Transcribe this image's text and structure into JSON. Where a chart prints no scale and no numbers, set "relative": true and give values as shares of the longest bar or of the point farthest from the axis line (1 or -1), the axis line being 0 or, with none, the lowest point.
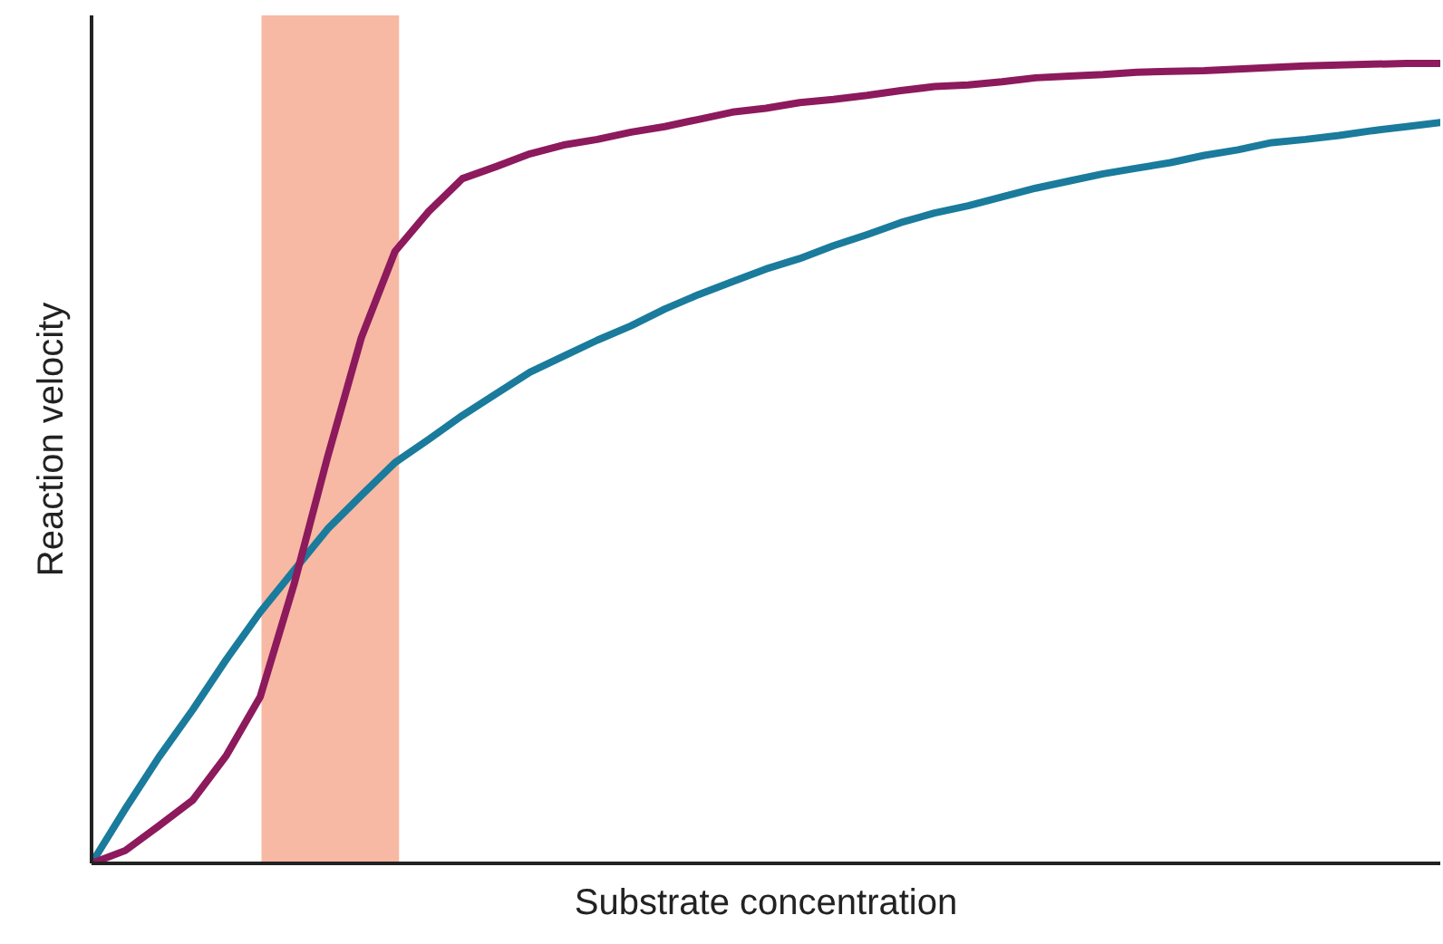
{
  "chart_data": {
    "type": "line",
    "relative": true,
    "xlabel": "Substrate concentration",
    "ylabel": "Reaction velocity",
    "categories": [
      null,
      null,
      null,
      null,
      null,
      null,
      null,
      null,
      null,
      null,
      null,
      null,
      null,
      null,
      null,
      null,
      null,
      null,
      null,
      null,
      null,
      null,
      null,
      null,
      null,
      null,
      null,
      null,
      null,
      null,
      null,
      null,
      null,
      null,
      null,
      null,
      null,
      null,
      null,
      null,
      null
    ],
    "series": [
      {
        "color": "#1a7b9c",
        "values": [
          0,
          0.068,
          0.133,
          0.192,
          0.255,
          0.314,
          0.366,
          0.418,
          0.46,
          0.501,
          0.53,
          0.56,
          0.587,
          0.614,
          0.634,
          0.654,
          0.672,
          0.693,
          0.711,
          0.727,
          0.743,
          0.756,
          0.772,
          0.786,
          0.801,
          0.813,
          0.822,
          0.833,
          0.844,
          0.853,
          0.862,
          0.869,
          0.876,
          0.885,
          0.892,
          0.901,
          0.905,
          0.91,
          0.916,
          0.921,
          0.926
        ]
      },
      {
        "color": "#8c1a5c",
        "values": [
          0,
          0.016,
          0.047,
          0.079,
          0.135,
          0.208,
          0.348,
          0.508,
          0.657,
          0.765,
          0.815,
          0.856,
          0.871,
          0.887,
          0.898,
          0.905,
          0.914,
          0.921,
          0.93,
          0.939,
          0.944,
          0.951,
          0.955,
          0.96,
          0.966,
          0.971,
          0.973,
          0.977,
          0.982,
          0.984,
          0.986,
          0.989,
          0.99,
          0.991,
          0.993,
          0.995,
          0.997,
          0.998,
          0.999,
          1.0,
          1.0
        ]
      }
    ]
  }
}
